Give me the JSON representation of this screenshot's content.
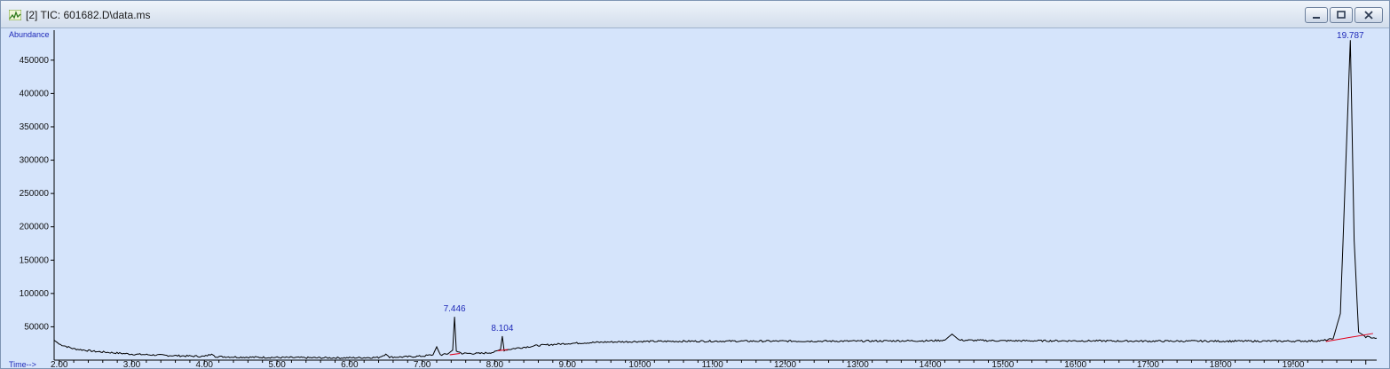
{
  "window": {
    "title": "[2] TIC: 601682.D\\data.ms",
    "icon": "chromatogram-app-icon",
    "buttons": [
      "minimize-icon",
      "maximize-icon",
      "close-icon"
    ]
  },
  "chart_data": {
    "type": "line",
    "ylabel": "Abundance",
    "xlabel": "Time-->",
    "xlim": [
      1.93,
      20.15
    ],
    "ylim": [
      0,
      495000
    ],
    "x_ticks": [
      "2.00",
      "3.00",
      "4.00",
      "5.00",
      "6.00",
      "7.00",
      "8.00",
      "9.00",
      "10.00",
      "11.00",
      "12.00",
      "13.00",
      "14.00",
      "15.00",
      "16.00",
      "17.00",
      "18.00",
      "19.00"
    ],
    "x_tick_values": [
      2,
      3,
      4,
      5,
      6,
      7,
      8,
      9,
      10,
      11,
      12,
      13,
      14,
      15,
      16,
      17,
      18,
      19
    ],
    "y_ticks": [
      "50000",
      "100000",
      "150000",
      "200000",
      "250000",
      "300000",
      "350000",
      "400000",
      "450000"
    ],
    "y_tick_values": [
      50000,
      100000,
      150000,
      200000,
      250000,
      300000,
      350000,
      400000,
      450000
    ],
    "series": [
      {
        "x": [
          1.93,
          2.0,
          2.2,
          2.5,
          3.0,
          3.5,
          4.0,
          4.1,
          4.15,
          4.2,
          4.5,
          5.0,
          5.5,
          6.0,
          6.4,
          6.5,
          6.55,
          6.6,
          6.8,
          7.0,
          7.15,
          7.2,
          7.25,
          7.35,
          7.42,
          7.446,
          7.47,
          7.55,
          7.8,
          8.0,
          8.08,
          8.104,
          8.13,
          8.3,
          8.6,
          9.0,
          9.5,
          10.0,
          11.0,
          12.0,
          13.0,
          13.6,
          14.0,
          14.2,
          14.3,
          14.4,
          15.0,
          16.0,
          17.0,
          18.0,
          19.0,
          19.4,
          19.55,
          19.65,
          19.72,
          19.787,
          19.84,
          19.9,
          20.0,
          20.15
        ],
        "y": [
          30000,
          24000,
          17000,
          13000,
          9000,
          7000,
          5500,
          9000,
          5500,
          5200,
          4500,
          4000,
          3500,
          3500,
          4000,
          9000,
          4500,
          4500,
          5000,
          6000,
          8000,
          20000,
          8000,
          9000,
          15000,
          65000,
          14000,
          10000,
          10000,
          12000,
          16000,
          36000,
          15000,
          18000,
          22000,
          25000,
          27000,
          28000,
          28500,
          28500,
          28500,
          29000,
          29000,
          30000,
          39000,
          30000,
          29000,
          29000,
          28500,
          28500,
          28500,
          29000,
          32000,
          70000,
          280000,
          480000,
          180000,
          42000,
          35000,
          33000
        ]
      }
    ],
    "peaks": [
      {
        "time": 7.446,
        "label": "7.446",
        "height": 65000
      },
      {
        "time": 8.104,
        "label": "8.104",
        "height": 36000
      },
      {
        "time": 19.787,
        "label": "19.787",
        "height": 480000
      }
    ],
    "baselines": [
      {
        "x": [
          7.38,
          7.52
        ],
        "y": [
          8000,
          10000
        ]
      },
      {
        "x": [
          8.04,
          8.18
        ],
        "y": [
          14000,
          16000
        ]
      },
      {
        "x": [
          19.45,
          20.1
        ],
        "y": [
          28000,
          40000
        ]
      }
    ],
    "colors": {
      "trace": "#000000",
      "baseline": "#e0001b",
      "labels": "#1f2ab8",
      "background": "#d5e4fb"
    }
  }
}
